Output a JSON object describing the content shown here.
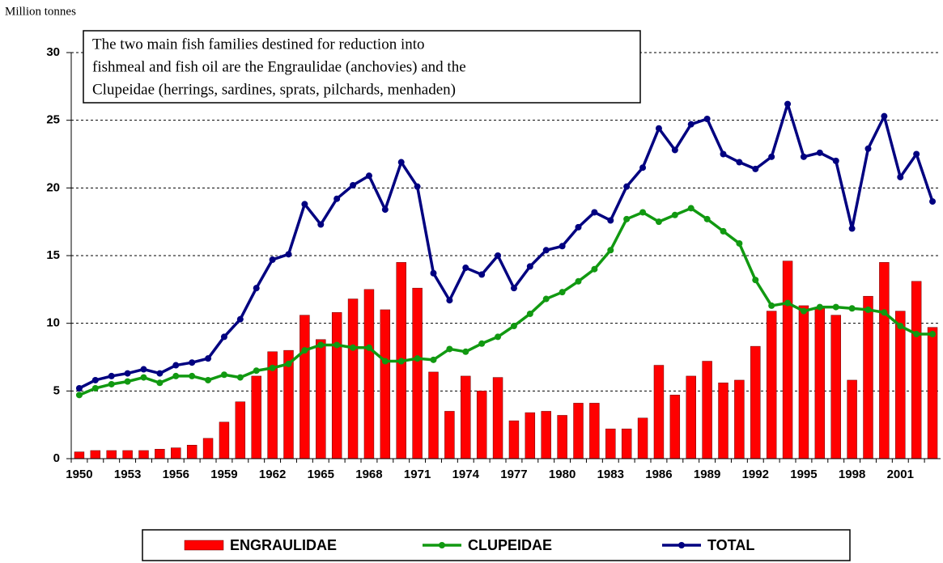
{
  "chart_data": {
    "type": "bar_line",
    "y_axis_label": "Million tonnes",
    "annotation": [
      "The two main fish families destined for reduction into",
      "fishmeal and fish oil are the Engraulidae (anchovies) and the",
      "Clupeidae (herrings, sardines, sprats, pilchards, menhaden)"
    ],
    "categories": [
      "1950",
      null,
      null,
      "1953",
      null,
      null,
      "1956",
      null,
      null,
      "1959",
      null,
      null,
      "1962",
      null,
      null,
      "1965",
      null,
      null,
      "1968",
      null,
      null,
      "1971",
      null,
      null,
      "1974",
      null,
      null,
      "1977",
      null,
      null,
      "1980",
      null,
      null,
      "1983",
      null,
      null,
      "1986",
      null,
      null,
      "1989",
      null,
      null,
      "1992",
      null,
      null,
      "1995",
      null,
      null,
      "1998",
      null,
      null,
      "2001",
      null,
      null
    ],
    "series": [
      {
        "name": "ENGRAULIDAE",
        "type": "bar",
        "color": "#ff0000",
        "values": [
          0.5,
          0.6,
          0.6,
          0.6,
          0.6,
          0.7,
          0.8,
          1.0,
          1.5,
          2.7,
          4.2,
          6.1,
          7.9,
          8.0,
          10.6,
          8.8,
          10.8,
          11.8,
          12.5,
          11.0,
          14.5,
          12.6,
          6.4,
          3.5,
          6.1,
          5.0,
          6.0,
          2.8,
          3.4,
          3.5,
          3.2,
          4.1,
          4.1,
          2.2,
          2.2,
          3.0,
          6.9,
          4.7,
          6.1,
          7.2,
          5.6,
          5.8,
          8.3,
          10.9,
          14.6,
          11.3,
          11.1,
          10.6,
          5.8,
          12.0,
          14.5,
          10.9,
          13.1,
          9.7
        ]
      },
      {
        "name": "CLUPEIDAE",
        "type": "line",
        "color": "#119911",
        "values": [
          4.7,
          5.2,
          5.5,
          5.7,
          6.0,
          5.6,
          6.1,
          6.1,
          5.8,
          6.2,
          6.0,
          6.5,
          6.7,
          7.0,
          8.0,
          8.4,
          8.4,
          8.2,
          8.2,
          7.2,
          7.2,
          7.4,
          7.3,
          8.1,
          7.9,
          8.5,
          9.0,
          9.8,
          10.7,
          11.8,
          12.3,
          13.1,
          14.0,
          15.4,
          17.7,
          18.2,
          17.5,
          18.0,
          18.5,
          17.7,
          16.8,
          15.9,
          13.2,
          11.3,
          11.5,
          10.9,
          11.2,
          11.2,
          11.1,
          11.0,
          10.8,
          9.8,
          9.2,
          9.2
        ]
      },
      {
        "name": "TOTAL",
        "type": "line",
        "color": "#000080",
        "values": [
          5.2,
          5.8,
          6.1,
          6.3,
          6.6,
          6.3,
          6.9,
          7.1,
          7.4,
          9.0,
          10.3,
          12.6,
          14.7,
          15.1,
          18.8,
          17.3,
          19.2,
          20.2,
          20.9,
          18.4,
          21.9,
          20.1,
          13.7,
          11.7,
          14.1,
          13.6,
          15.0,
          12.6,
          14.2,
          15.4,
          15.7,
          17.1,
          18.2,
          17.6,
          20.1,
          21.5,
          24.4,
          22.8,
          24.7,
          25.1,
          22.5,
          21.9,
          21.4,
          22.3,
          26.2,
          22.3,
          22.6,
          22.0,
          17.0,
          22.9,
          25.3,
          20.8,
          22.5,
          19.0
        ]
      }
    ],
    "ylim": [
      0,
      30
    ],
    "yticks": [
      0,
      5,
      10,
      15,
      20,
      25,
      30
    ],
    "grid": true
  }
}
